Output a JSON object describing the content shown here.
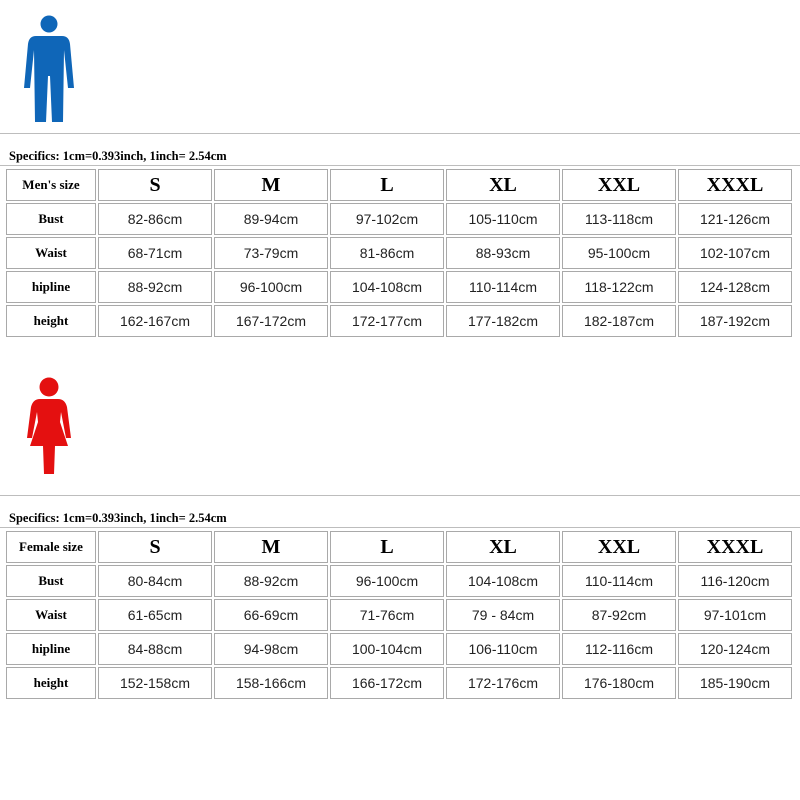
{
  "colors": {
    "men_figure": "#0f66b8",
    "female_figure": "#e41010",
    "cell_border": "#a9a9a9"
  },
  "men": {
    "figure_icon": "man-icon",
    "specifics": "Specifics: 1cm=0.393inch, 1inch= 2.54cm",
    "size_label": "Men's size",
    "sizes": [
      "S",
      "M",
      "L",
      "XL",
      "XXL",
      "XXXL"
    ],
    "rows": [
      {
        "label": "Bust",
        "values": [
          "82-86cm",
          "89-94cm",
          "97-102cm",
          "105-110cm",
          "113-118cm",
          "121-126cm"
        ]
      },
      {
        "label": "Waist",
        "values": [
          "68-71cm",
          "73-79cm",
          "81-86cm",
          "88-93cm",
          "95-100cm",
          "102-107cm"
        ]
      },
      {
        "label": "hipline",
        "values": [
          "88-92cm",
          "96-100cm",
          "104-108cm",
          "110-114cm",
          "118-122cm",
          "124-128cm"
        ]
      },
      {
        "label": "height",
        "values": [
          "162-167cm",
          "167-172cm",
          "172-177cm",
          "177-182cm",
          "182-187cm",
          "187-192cm"
        ]
      }
    ]
  },
  "female": {
    "figure_icon": "woman-icon",
    "specifics": "Specifics: 1cm=0.393inch, 1inch= 2.54cm",
    "size_label": "Female size",
    "sizes": [
      "S",
      "M",
      "L",
      "XL",
      "XXL",
      "XXXL"
    ],
    "rows": [
      {
        "label": "Bust",
        "values": [
          "80-84cm",
          "88-92cm",
          "96-100cm",
          "104-108cm",
          "110-114cm",
          "116-120cm"
        ]
      },
      {
        "label": "Waist",
        "values": [
          "61-65cm",
          "66-69cm",
          "71-76cm",
          "79 - 84cm",
          "87-92cm",
          "97-101cm"
        ]
      },
      {
        "label": "hipline",
        "values": [
          "84-88cm",
          "94-98cm",
          "100-104cm",
          "106-110cm",
          "112-116cm",
          "120-124cm"
        ]
      },
      {
        "label": "height",
        "values": [
          "152-158cm",
          "158-166cm",
          "166-172cm",
          "172-176cm",
          "176-180cm",
          "185-190cm"
        ]
      }
    ]
  }
}
